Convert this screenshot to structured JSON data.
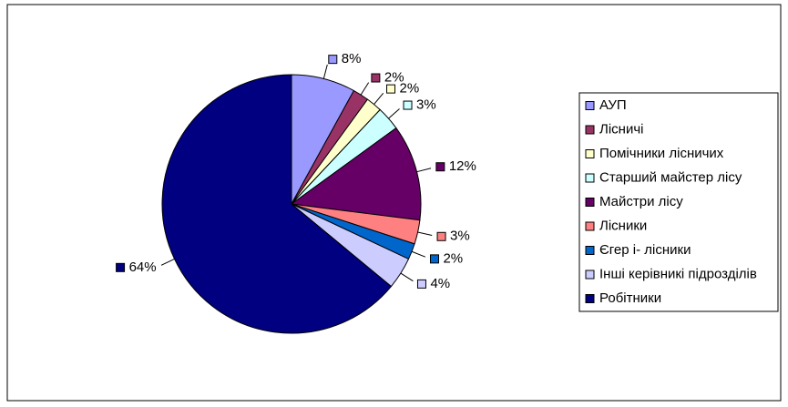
{
  "chart_data": {
    "type": "pie",
    "categories": [
      "АУП",
      "Лісничі",
      "Помічники лісничих",
      "Старший майстер лісу",
      "Майстри лісу",
      "Лісники",
      "Єгер і- лісники",
      "Інші керівникі підрозділів",
      "Робітники"
    ],
    "values": [
      8,
      2,
      2,
      3,
      12,
      3,
      2,
      4,
      64
    ],
    "value_labels": [
      "8%",
      "2%",
      "2%",
      "3%",
      "12%",
      "3%",
      "2%",
      "4%",
      "64%"
    ],
    "colors": [
      "#9999ff",
      "#993366",
      "#ffffcc",
      "#ccffff",
      "#660066",
      "#ff8080",
      "#0066cc",
      "#ccccff",
      "#000080"
    ],
    "legend": "right"
  }
}
